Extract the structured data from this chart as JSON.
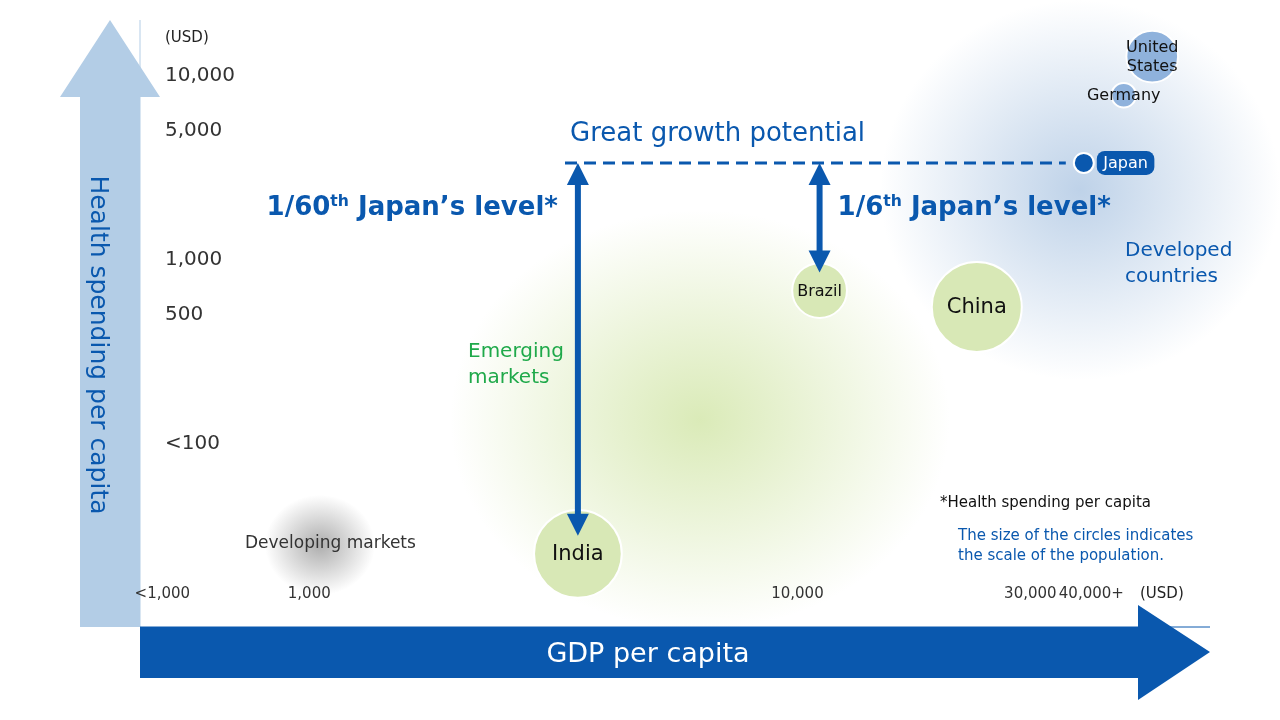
{
  "chart_data": {
    "type": "bubble",
    "xlabel": "GDP per capita",
    "ylabel": "Health spending per capita",
    "log": "xy",
    "x": [
      3550,
      11100,
      23300,
      38600,
      46600,
      53300
    ],
    "series": [
      {
        "values": [
          25,
          676,
          550,
          3340,
          7800,
          12650
        ],
        "sizes": [
          0.95,
          0.37,
          1,
          0.049,
          0.074,
          0.33
        ],
        "colors": [
          "#d8e8b6",
          "#d8e8b6",
          "#d8e8b6",
          "#0a58ae",
          "#8fb2dc",
          "#8fb2dc"
        ]
      }
    ],
    "xlim": [
      450,
      70000
    ],
    "xticks": [
      {
        "value": 500,
        "label": "<1,000"
      },
      {
        "value": 1000,
        "label": "1,000"
      },
      {
        "value": 10000,
        "label": "10,000"
      },
      {
        "value": 30000,
        "label": "30,000"
      },
      {
        "value": 40000,
        "label": "40,000+"
      }
    ],
    "ylim": [
      10,
      20000
    ],
    "yticks": [
      {
        "value": 100,
        "label": "<100"
      },
      {
        "value": 500,
        "label": "500"
      },
      {
        "value": 1000,
        "label": "1,000"
      },
      {
        "value": 5000,
        "label": "5,000"
      },
      {
        "value": 10000,
        "label": "10,000"
      }
    ],
    "ref_lines": [
      {
        "axis": "y",
        "value": 3340,
        "label": "Great growth potential",
        "color": "#0a58ae",
        "line_style": "dashed"
      }
    ],
    "annotations": [
      "(USD)",
      "(USD)",
      "1/60$^{th}$ Japan’s level*",
      "1/6$^{th}$ Japan’s level*",
      "Emerging markets",
      "Developed countries",
      "Developing markets",
      "*Health spending per capita",
      "The size of the circles indicates the scale of the population.",
      {
        "text": "India",
        "x": 3550,
        "y": 25
      },
      {
        "text": "Brazil",
        "x": 11100,
        "y": 676
      },
      {
        "text": "China",
        "x": 23300,
        "y": 550
      },
      {
        "text": "Japan",
        "x": 38600,
        "y": 3340
      },
      {
        "text": "Germany",
        "x": 46600,
        "y": 7800
      },
      {
        "text": "United States",
        "x": 53300,
        "y": 12650
      }
    ]
  }
}
